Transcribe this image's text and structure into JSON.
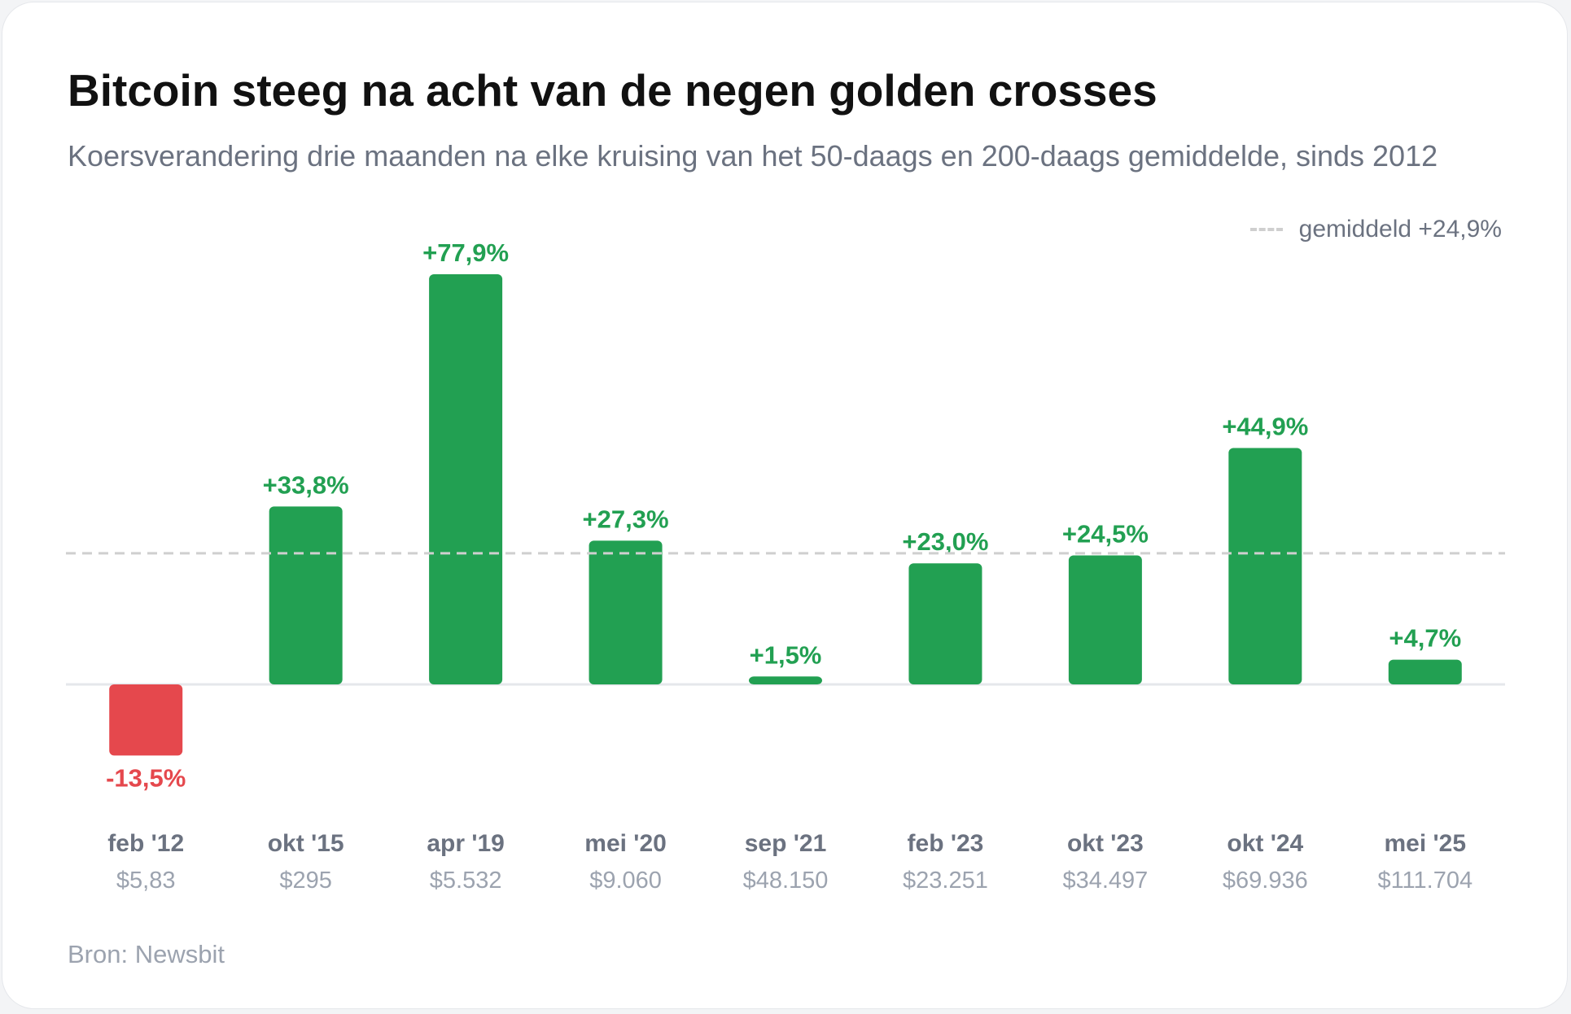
{
  "title": "Bitcoin steeg na acht van de negen golden crosses",
  "subtitle": "Koersverandering drie maanden na elke kruising van het 50-daags en 200-daags gemiddelde, sinds 2012",
  "source": "Bron: Newsbit",
  "colors": {
    "positive": "#22a052",
    "negative": "#e5484d",
    "average_line": "#cfcfcf",
    "baseline": "#e5e7eb",
    "category_text": "#6b7280",
    "price_text": "#9ca3af"
  },
  "chart_data": {
    "type": "bar",
    "categories": [
      "feb '12",
      "okt '15",
      "apr '19",
      "mei '20",
      "sep '21",
      "feb '23",
      "okt '23",
      "okt '24",
      "mei '25"
    ],
    "values": [
      -13.5,
      33.8,
      77.9,
      27.3,
      1.5,
      23.0,
      24.5,
      44.9,
      4.7
    ],
    "value_labels": [
      "-13,5%",
      "+33,8%",
      "+77,9%",
      "+27,3%",
      "+1,5%",
      "+23,0%",
      "+24,5%",
      "+44,9%",
      "+4,7%"
    ],
    "prices": [
      "$5,83",
      "$295",
      "$5.532",
      "$9.060",
      "$48.150",
      "$23.251",
      "$34.497",
      "$69.936",
      "$111.704"
    ],
    "average": 24.9,
    "average_label": "gemiddeld +24,9%",
    "legend_position": "top-right",
    "grid": false
  }
}
